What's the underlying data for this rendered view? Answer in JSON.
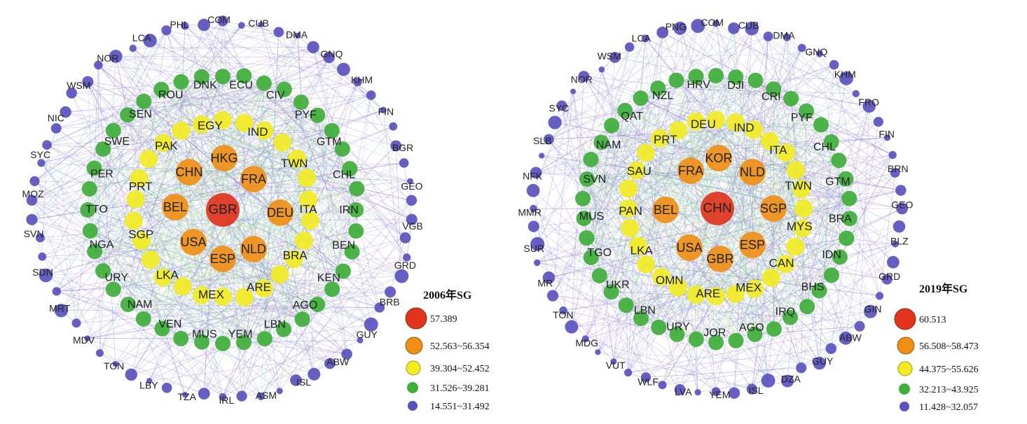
{
  "colors": {
    "tier1": "#e0341c",
    "tier2": "#ef8f16",
    "tier3": "#f2ec25",
    "tier4": "#3fae3a",
    "tier5": "#5a52bd",
    "edges": [
      "#8a6fcf",
      "#9a86d6",
      "#7fc7c3",
      "#b7d36a",
      "#6cc070"
    ]
  },
  "networks": [
    {
      "id": "2006",
      "legend": {
        "title": "2006年SG",
        "ranges": [
          "57.389",
          "52.563~56.354",
          "39.304~52.452",
          "31.526~39.281",
          "14.551~31.492"
        ]
      },
      "nodes": {
        "red": [
          "GBR"
        ],
        "orange": [
          "HKG",
          "CHN",
          "FRA",
          "BEL",
          "DEU",
          "USA",
          "NLD",
          "ESP"
        ],
        "yellow_labeled": [
          "EGY",
          "IND",
          "TWN",
          "ITA",
          "BRA",
          "ARE",
          "MEX",
          "LKA",
          "SGP",
          "PRT",
          "PAK"
        ],
        "green_labeled": [
          "DNK",
          "ECU",
          "CIV",
          "PYF",
          "GTM",
          "CHL",
          "IRN",
          "BEN",
          "KEN",
          "AGO",
          "LBN",
          "YEM",
          "MUS",
          "VEN",
          "NAM",
          "URY",
          "NGA",
          "TTO",
          "PER",
          "SWE",
          "SEN",
          "ROU"
        ],
        "blue_labeled": [
          "COM",
          "CUB",
          "DMA",
          "GNQ",
          "KHM",
          "FIN",
          "BGR",
          "GEO",
          "VGB",
          "GRD",
          "BRB",
          "GUY",
          "ABW",
          "ISL",
          "ASM",
          "IRL",
          "TZA",
          "LBY",
          "TON",
          "MDV",
          "MRT",
          "SDN",
          "SVN",
          "MOZ",
          "SYC",
          "NIC",
          "WSM",
          "NOR",
          "LCA",
          "PHL"
        ]
      }
    },
    {
      "id": "2019",
      "legend": {
        "title": "2019年SG",
        "ranges": [
          "60.513",
          "56.508~58.473",
          "44.375~55.626",
          "32.213~43.925",
          "11.428~32.057"
        ]
      },
      "nodes": {
        "red": [
          "CHN"
        ],
        "orange": [
          "KOR",
          "FRA",
          "NLD",
          "BEL",
          "SGP",
          "USA",
          "ESP",
          "GBR"
        ],
        "yellow_labeled": [
          "DEU",
          "IND",
          "ITA",
          "TWN",
          "MYS",
          "CAN",
          "MEX",
          "ARE",
          "OMN",
          "LKA",
          "PAN",
          "SAU",
          "PRT"
        ],
        "green_labeled": [
          "HRV",
          "DJI",
          "CRI",
          "PYF",
          "CHL",
          "GTM",
          "BRA",
          "IDN",
          "BHS",
          "IRQ",
          "AGO",
          "JOR",
          "URY",
          "LBN",
          "UKR",
          "TGO",
          "MUS",
          "SVN",
          "NAM",
          "QAT",
          "NZL"
        ],
        "blue_labeled": [
          "COM",
          "CUB",
          "DMA",
          "GNQ",
          "KHM",
          "FRO",
          "FIN",
          "BRN",
          "GEO",
          "BLZ",
          "GRD",
          "GIN",
          "ABW",
          "GUY",
          "DZA",
          "ISL",
          "YEM",
          "LVA",
          "WLF",
          "VUT",
          "MDG",
          "TON",
          "MR",
          "SUR",
          "MMR",
          "NFK",
          "SLB",
          "SYC",
          "NOR",
          "WSM",
          "LCA",
          "PNG"
        ]
      }
    }
  ]
}
